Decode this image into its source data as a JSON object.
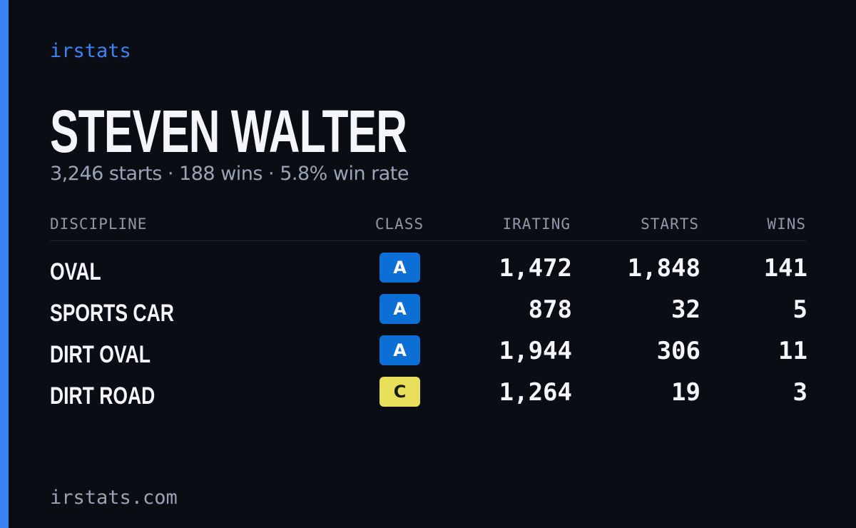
{
  "brand": "irstats",
  "header": {
    "name": "STEVEN WALTER",
    "summary": "3,246 starts · 188 wins · 5.8% win rate"
  },
  "table": {
    "columns": [
      "DISCIPLINE",
      "CLASS",
      "IRATING",
      "STARTS",
      "WINS"
    ],
    "rows": [
      [
        "OVAL",
        "A",
        "1,472",
        "1,848",
        "141"
      ],
      [
        "SPORTS CAR",
        "A",
        "878",
        "32",
        "5"
      ],
      [
        "DIRT OVAL",
        "A",
        "1,944",
        "306",
        "11"
      ],
      [
        "DIRT ROAD",
        "C",
        "1,264",
        "19",
        "3"
      ]
    ],
    "badge_colors": {
      "A": {
        "bg": "#0b6fd6",
        "fg": "#ffffff"
      },
      "C": {
        "bg": "#e8e05a",
        "fg": "#1a1a1a"
      }
    }
  },
  "footer": {
    "url": "irstats.com"
  }
}
